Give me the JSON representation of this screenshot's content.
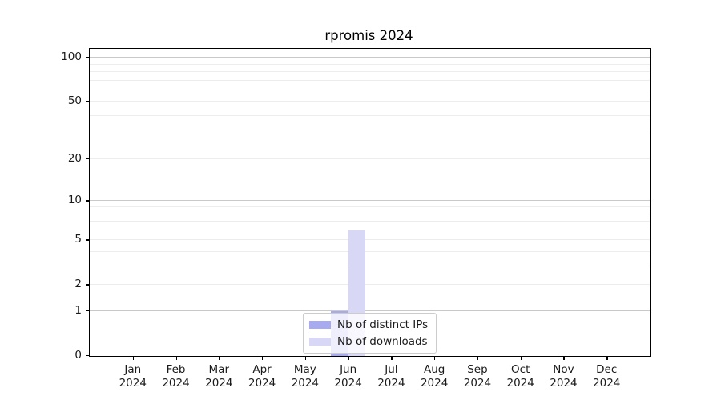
{
  "title": "rpromis 2024",
  "chart_data": {
    "type": "bar",
    "title": "rpromis 2024",
    "x_months": [
      "Jan",
      "Feb",
      "Mar",
      "Apr",
      "May",
      "Jun",
      "Jul",
      "Aug",
      "Sep",
      "Oct",
      "Nov",
      "Dec"
    ],
    "x_year": "2024",
    "series": [
      {
        "name": "Nb of distinct IPs",
        "color": "#a8aaf0",
        "values": [
          0,
          0,
          0,
          0,
          0,
          1,
          0,
          0,
          0,
          0,
          0,
          0
        ]
      },
      {
        "name": "Nb of downloads",
        "color": "#d8d8f6",
        "values": [
          0,
          0,
          0,
          0,
          0,
          6,
          0,
          0,
          0,
          0,
          0,
          0
        ]
      }
    ],
    "yscale": "log1p",
    "ylim": [
      0,
      112
    ],
    "yticks": [
      0,
      1,
      2,
      5,
      10,
      20,
      50,
      100
    ],
    "major_gridlines": [
      1,
      10,
      100
    ],
    "minor_gridlines": [
      2,
      3,
      4,
      5,
      6,
      7,
      8,
      9,
      20,
      30,
      40,
      50,
      60,
      70,
      80,
      90
    ],
    "grid": true,
    "legend_position": "lower center"
  },
  "colors": {
    "major_grid": "#c9c9c9",
    "minor_grid": "#ededed",
    "axis": "#000000",
    "text": "#1a1a1a",
    "legend_border": "#cccccc"
  }
}
